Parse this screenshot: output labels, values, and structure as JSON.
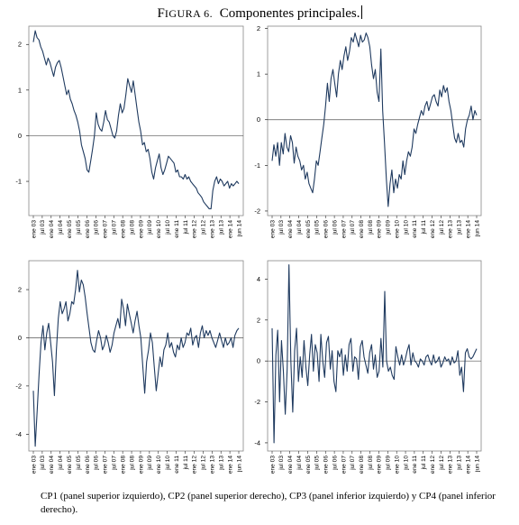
{
  "figure": {
    "label_first": "F",
    "label_rest": "IGURA 6.",
    "title": "Componentes principales."
  },
  "caption": "CP1 (panel superior izquierdo), CP2 (panel superior derecho), CP3 (panel inferior izquierdo) y CP4 (panel inferior derecho).",
  "x_tick_labels": [
    "ene 03",
    "jul 03",
    "ene 04",
    "jul 04",
    "ene 05",
    "jul 05",
    "ene 06",
    "jul 06",
    "ene 07",
    "jul 07",
    "ene 08",
    "jul 08",
    "ene 09",
    "jul 09",
    "ene 10",
    "jul 10",
    "ene 11",
    "jul 11",
    "ene 12",
    "jul 12",
    "ene 13",
    "jul 13",
    "ene 14",
    "jun 14"
  ],
  "colors": {
    "line": "#1f3a5f",
    "zero_line": "#555555",
    "frame": "#888888"
  },
  "chart_data": [
    {
      "type": "line",
      "panel": "top-left",
      "ylim": [
        -1.75,
        2.4
      ],
      "yticks": [
        -1,
        0,
        1,
        2
      ],
      "zero_line": true,
      "series": [
        {
          "values": [
            2.05,
            2.3,
            2.15,
            2.1,
            1.95,
            1.85,
            1.7,
            1.55,
            1.7,
            1.6,
            1.45,
            1.3,
            1.5,
            1.6,
            1.65,
            1.5,
            1.3,
            1.1,
            0.9,
            1.0,
            0.8,
            0.7,
            0.55,
            0.45,
            0.3,
            0.1,
            -0.2,
            -0.35,
            -0.5,
            -0.75,
            -0.8,
            -0.55,
            -0.3,
            0.0,
            0.5,
            0.25,
            0.15,
            0.1,
            0.3,
            0.55,
            0.35,
            0.3,
            0.15,
            0.0,
            -0.05,
            0.1,
            0.45,
            0.7,
            0.5,
            0.6,
            0.9,
            1.25,
            1.1,
            0.95,
            1.2,
            0.9,
            0.6,
            0.3,
            0.1,
            -0.2,
            -0.15,
            -0.35,
            -0.3,
            -0.5,
            -0.8,
            -0.95,
            -0.7,
            -0.55,
            -0.4,
            -0.7,
            -0.85,
            -0.75,
            -0.6,
            -0.45,
            -0.5,
            -0.55,
            -0.6,
            -0.8,
            -0.75,
            -0.9,
            -0.9,
            -0.95,
            -0.85,
            -0.95,
            -0.9,
            -1.0,
            -1.05,
            -1.1,
            -1.15,
            -1.25,
            -1.3,
            -1.35,
            -1.45,
            -1.5,
            -1.55,
            -1.6,
            -1.6,
            -1.2,
            -1.0,
            -0.9,
            -1.05,
            -0.95,
            -1.0,
            -1.1,
            -1.05,
            -1.0,
            -1.15,
            -1.05,
            -1.1,
            -1.05,
            -1.0,
            -1.05
          ]
        }
      ]
    },
    {
      "type": "line",
      "panel": "top-right",
      "ylim": [
        -2.1,
        2.05
      ],
      "yticks": [
        -2,
        -1,
        0,
        1,
        2
      ],
      "zero_line": true,
      "series": [
        {
          "values": [
            -0.9,
            -0.55,
            -0.8,
            -0.5,
            -1.0,
            -0.5,
            -0.75,
            -0.3,
            -0.6,
            -0.7,
            -0.35,
            -0.5,
            -0.95,
            -0.6,
            -0.8,
            -0.9,
            -1.1,
            -1.0,
            -1.3,
            -1.15,
            -1.4,
            -1.5,
            -1.6,
            -1.3,
            -0.9,
            -1.0,
            -0.7,
            -0.4,
            -0.1,
            0.3,
            0.8,
            0.4,
            0.9,
            1.1,
            0.8,
            0.5,
            1.0,
            1.3,
            1.1,
            1.4,
            1.6,
            1.3,
            1.5,
            1.8,
            1.7,
            1.9,
            1.75,
            1.6,
            1.85,
            1.7,
            1.75,
            1.9,
            1.8,
            1.6,
            1.2,
            0.9,
            1.1,
            0.6,
            0.4,
            1.55,
            0.2,
            -0.5,
            -1.3,
            -1.9,
            -1.4,
            -1.1,
            -1.6,
            -1.3,
            -1.5,
            -1.2,
            -1.3,
            -0.9,
            -1.2,
            -0.9,
            -0.7,
            -0.8,
            -0.6,
            -0.2,
            -0.3,
            -0.1,
            0.05,
            0.2,
            0.1,
            0.3,
            0.4,
            0.2,
            0.35,
            0.5,
            0.55,
            0.4,
            0.3,
            0.65,
            0.5,
            0.75,
            0.6,
            0.7,
            0.4,
            0.2,
            -0.1,
            -0.4,
            -0.5,
            -0.3,
            -0.5,
            -0.45,
            -0.6,
            -0.2,
            0.0,
            0.1,
            0.3,
            0.0,
            0.2,
            0.1
          ]
        }
      ]
    },
    {
      "type": "line",
      "panel": "bottom-left",
      "ylim": [
        -4.7,
        3.2
      ],
      "yticks": [
        -4,
        -2,
        0,
        2
      ],
      "zero_line": true,
      "series": [
        {
          "values": [
            -2.2,
            -4.5,
            -3.0,
            -1.5,
            -0.2,
            0.5,
            -0.5,
            0.2,
            0.6,
            -0.2,
            -1.0,
            -2.4,
            -0.5,
            0.8,
            1.5,
            1.0,
            1.2,
            1.5,
            0.7,
            1.0,
            1.5,
            1.4,
            2.0,
            2.8,
            1.9,
            2.4,
            2.2,
            1.7,
            1.0,
            0.4,
            -0.2,
            -0.5,
            -0.6,
            -0.1,
            0.3,
            0.0,
            -0.5,
            -0.3,
            0.1,
            -0.2,
            -0.6,
            -0.3,
            0.2,
            0.5,
            0.8,
            0.4,
            1.6,
            1.2,
            0.5,
            1.4,
            1.0,
            0.6,
            0.2,
            0.7,
            1.1,
            0.5,
            0.0,
            -1.2,
            -2.3,
            -1.0,
            -0.5,
            0.2,
            -0.2,
            -1.2,
            -2.2,
            -1.5,
            -0.8,
            -1.2,
            -0.5,
            -0.3,
            0.2,
            -0.4,
            -0.2,
            -0.6,
            -0.8,
            -0.3,
            -0.5,
            0.0,
            -0.4,
            -0.2,
            0.2,
            0.1,
            0.4,
            -0.3,
            0.0,
            0.1,
            -0.4,
            0.2,
            0.5,
            0.0,
            0.3,
            0.1,
            0.3,
            0.0,
            -0.2,
            -0.4,
            -0.1,
            0.2,
            -0.1,
            -0.4,
            0.0,
            -0.3,
            -0.2,
            0.0,
            -0.4,
            0.1,
            0.3,
            0.4
          ]
        }
      ]
    },
    {
      "type": "line",
      "panel": "bottom-right",
      "ylim": [
        -4.4,
        4.9
      ],
      "yticks": [
        -4,
        -2,
        0,
        2,
        4
      ],
      "zero_line": true,
      "series": [
        {
          "values": [
            1.6,
            -4.0,
            0.3,
            1.5,
            -2.0,
            1.0,
            -0.5,
            -2.6,
            -0.4,
            4.7,
            0.0,
            -2.5,
            0.5,
            1.6,
            -1.0,
            0.2,
            -0.8,
            1.0,
            -0.3,
            -1.2,
            0.3,
            1.3,
            -0.5,
            0.8,
            0.4,
            -1.0,
            1.3,
            0.0,
            -0.8,
            0.9,
            1.2,
            -0.4,
            0.5,
            -1.0,
            -1.5,
            0.5,
            0.2,
            0.6,
            -0.7,
            0.3,
            -0.5,
            0.8,
            1.1,
            -0.5,
            0.2,
            0.1,
            -0.9,
            0.7,
            1.0,
            0.2,
            -0.2,
            -0.6,
            0.4,
            0.8,
            -0.4,
            0.3,
            -0.8,
            -0.5,
            1.1,
            -0.3,
            3.4,
            0.0,
            -0.5,
            -0.3,
            -0.7,
            -0.9,
            0.7,
            0.2,
            -0.2,
            0.3,
            -0.2,
            0.1,
            0.5,
            0.8,
            -0.2,
            0.4,
            0.0,
            -0.1,
            -0.3,
            0.1,
            0.0,
            -0.2,
            0.2,
            0.3,
            0.0,
            -0.2,
            0.3,
            -0.1,
            0.0,
            0.2,
            -0.3,
            -0.1,
            0.2,
            0.0,
            0.1,
            -0.2,
            0.2,
            -0.1,
            0.0,
            0.5,
            -0.7,
            -0.3,
            -1.5,
            0.4,
            0.6,
            0.2,
            0.1,
            0.2,
            0.4,
            0.6
          ]
        }
      ]
    }
  ]
}
